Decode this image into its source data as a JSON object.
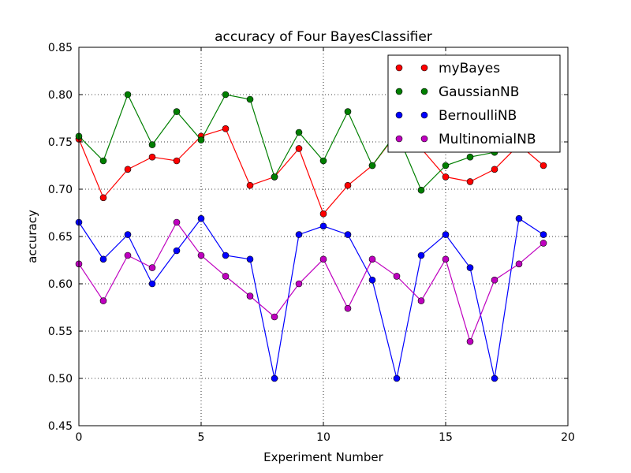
{
  "chart_data": {
    "type": "line",
    "title": "accuracy of Four BayesClassifier",
    "xlabel": "Experiment Number",
    "ylabel": "accuracy",
    "xlim": [
      0,
      20
    ],
    "ylim": [
      0.45,
      0.85
    ],
    "xticks": [
      0,
      5,
      10,
      15,
      20
    ],
    "yticks": [
      0.45,
      0.5,
      0.55,
      0.6,
      0.65,
      0.7,
      0.75,
      0.8,
      0.85
    ],
    "ytick_labels": [
      "0.45",
      "0.50",
      "0.55",
      "0.60",
      "0.65",
      "0.70",
      "0.75",
      "0.80",
      "0.85"
    ],
    "grid": true,
    "legend_position": "top-right",
    "x": [
      0,
      1,
      2,
      3,
      4,
      5,
      6,
      7,
      8,
      9,
      10,
      11,
      12,
      13,
      14,
      15,
      16,
      17,
      18,
      19
    ],
    "series": [
      {
        "name": "myBayes",
        "color": "#ff0000",
        "values": [
          0.753,
          0.691,
          0.721,
          0.734,
          0.73,
          0.756,
          0.764,
          0.704,
          0.713,
          0.743,
          0.674,
          0.704,
          0.725,
          0.759,
          0.743,
          0.713,
          0.708,
          0.721,
          0.747,
          0.725
        ]
      },
      {
        "name": "GaussianNB",
        "color": "#007f00",
        "values": [
          0.756,
          0.73,
          0.8,
          0.747,
          0.782,
          0.752,
          0.8,
          0.795,
          0.713,
          0.76,
          0.73,
          0.782,
          0.725,
          0.76,
          0.699,
          0.725,
          0.734,
          0.739,
          0.752,
          0.76
        ]
      },
      {
        "name": "BernoulliNB",
        "color": "#0000ff",
        "values": [
          0.665,
          0.626,
          0.652,
          0.6,
          0.635,
          0.669,
          0.63,
          0.626,
          0.5,
          0.652,
          0.661,
          0.652,
          0.604,
          0.5,
          0.63,
          0.652,
          0.617,
          0.5,
          0.669,
          0.652
        ]
      },
      {
        "name": "MultinomialNB",
        "color": "#bf00bf",
        "values": [
          0.621,
          0.582,
          0.63,
          0.617,
          0.665,
          0.63,
          0.608,
          0.587,
          0.565,
          0.6,
          0.626,
          0.574,
          0.626,
          0.608,
          0.582,
          0.626,
          0.539,
          0.604,
          0.621,
          0.643
        ]
      }
    ]
  }
}
